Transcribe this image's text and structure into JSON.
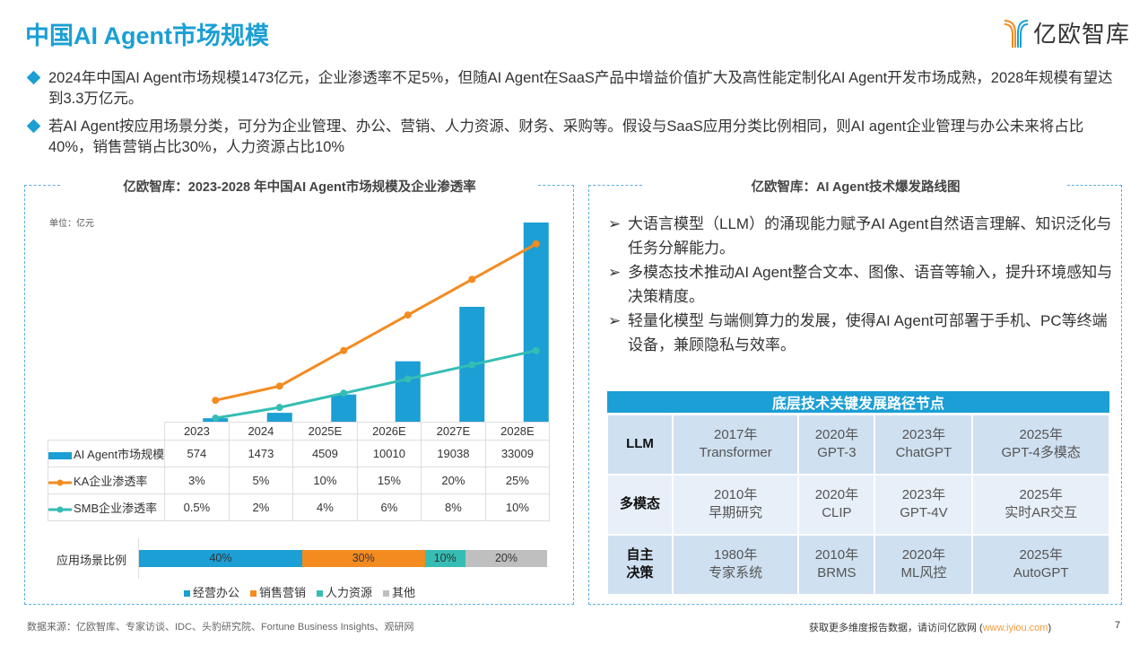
{
  "header": {
    "title": "中国AI Agent市场规模",
    "logo_text": "亿欧智库"
  },
  "bullets": [
    "2024年中国AI Agent市场规模1473亿元，企业渗透率不足5%，但随AI Agent在SaaS产品中增益价值扩大及高性能定制化AI Agent开发市场成熟，2028年规模有望达到3.3万亿元。",
    "若AI Agent按应用场景分类，可分为企业管理、办公、营销、人力资源、财务、采购等。假设与SaaS应用分类比例相同，则AI agent企业管理与办公未来将占比40%，销售营销占比30%，人力资源占比10%"
  ],
  "left_panel": {
    "title": "亿欧智库：2023-2028 年中国AI Agent市场规模及企业渗透率",
    "unit": "单位：亿元"
  },
  "chart_data": {
    "type": "bar+line",
    "categories": [
      "2023",
      "2024",
      "2025E",
      "2026E",
      "2027E",
      "2028E"
    ],
    "series": [
      {
        "name": "AI Agent市场规模",
        "kind": "bar",
        "values": [
          574,
          1473,
          4509,
          10010,
          19038,
          33009
        ],
        "labels": [
          "574",
          "1473",
          "4509",
          "10010",
          "19038",
          "33009"
        ],
        "color": "#1b9fd4"
      },
      {
        "name": "KA企业渗透率",
        "kind": "line",
        "values": [
          3,
          5,
          10,
          15,
          20,
          25
        ],
        "labels": [
          "3%",
          "5%",
          "10%",
          "15%",
          "20%",
          "25%"
        ],
        "color": "#f38b20"
      },
      {
        "name": "SMB企业渗透率",
        "kind": "line",
        "values": [
          0.5,
          2,
          4,
          6,
          8,
          10
        ],
        "labels": [
          "0.5%",
          "2%",
          "4%",
          "6%",
          "8%",
          "10%"
        ],
        "color": "#35bdb4"
      }
    ],
    "ylim_bar": [
      0,
      33009
    ],
    "ylim_line": [
      0,
      28
    ],
    "grid": false,
    "legend": "data-table"
  },
  "share_chart": {
    "label": "应用场景比例",
    "segments": [
      {
        "name": "经营办公",
        "value": 40,
        "label": "40%",
        "color": "#1b9fd4"
      },
      {
        "name": "销售营销",
        "value": 30,
        "label": "30%",
        "color": "#f38b20"
      },
      {
        "name": "人力资源",
        "value": 10,
        "label": "10%",
        "color": "#35bdb4"
      },
      {
        "name": "其他",
        "value": 20,
        "label": "20%",
        "color": "#bfbfbf"
      }
    ]
  },
  "right_panel": {
    "title": "亿欧智库：AI Agent技术爆发路线图",
    "points": [
      "大语言模型（LLM）的涌现能力赋予AI Agent自然语言理解、知识泛化与任务分解能力。",
      "多模态技术推动AI Agent整合文本、图像、语音等输入，提升环境感知与决策精度。",
      "轻量化模型 与端侧算力的发展，使得AI Agent可部署于手机、PC等终端设备，兼顾隐私与效率。"
    ],
    "table_title": "底层技术关键发展路径节点",
    "rows": [
      {
        "label": "LLM",
        "cells": [
          [
            "2017年",
            "Transformer"
          ],
          [
            "2020年",
            "GPT-3"
          ],
          [
            "2023年",
            "ChatGPT"
          ],
          [
            "2025年",
            "GPT-4多模态"
          ]
        ]
      },
      {
        "label": "多模态",
        "cells": [
          [
            "2010年",
            "早期研究"
          ],
          [
            "2020年",
            "CLIP"
          ],
          [
            "2023年",
            "GPT-4V"
          ],
          [
            "2025年",
            "实时AR交互"
          ]
        ]
      },
      {
        "label": "自主\n决策",
        "cells": [
          [
            "1980年",
            "专家系统"
          ],
          [
            "2010年",
            "BRMS"
          ],
          [
            "2020年",
            "ML风控"
          ],
          [
            "2025年",
            "AutoGPT"
          ]
        ]
      }
    ]
  },
  "footer": {
    "source": "数据来源：亿欧智库、专家访谈、IDC、头豹研究院、Fortune Business Insights、观研网",
    "cta_prefix": "获取更多维度报告数据，请访问亿欧网 (",
    "cta_link": "www.iyiou.com",
    "cta_suffix": ")",
    "page": "7"
  }
}
